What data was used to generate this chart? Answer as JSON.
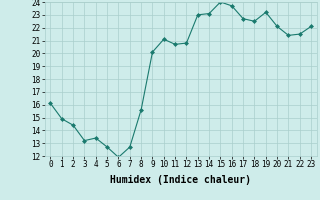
{
  "xlabel": "Humidex (Indice chaleur)",
  "x": [
    0,
    1,
    2,
    3,
    4,
    5,
    6,
    7,
    8,
    9,
    10,
    11,
    12,
    13,
    14,
    15,
    16,
    17,
    18,
    19,
    20,
    21,
    22,
    23
  ],
  "y": [
    16.1,
    14.9,
    14.4,
    13.2,
    13.4,
    12.7,
    11.9,
    12.7,
    15.6,
    20.1,
    21.1,
    20.7,
    20.8,
    23.0,
    23.1,
    24.0,
    23.7,
    22.7,
    22.5,
    23.2,
    22.1,
    21.4,
    21.5,
    22.1
  ],
  "line_color": "#1a7a6e",
  "marker": "D",
  "marker_size": 2,
  "bg_color": "#ceecea",
  "grid_color": "#aacfcc",
  "ylim": [
    12,
    24
  ],
  "xlim": [
    -0.5,
    23.5
  ],
  "yticks": [
    12,
    13,
    14,
    15,
    16,
    17,
    18,
    19,
    20,
    21,
    22,
    23,
    24
  ],
  "xticks": [
    0,
    1,
    2,
    3,
    4,
    5,
    6,
    7,
    8,
    9,
    10,
    11,
    12,
    13,
    14,
    15,
    16,
    17,
    18,
    19,
    20,
    21,
    22,
    23
  ],
  "tick_label_fontsize": 5.5,
  "xlabel_fontsize": 7,
  "line_width": 0.8
}
